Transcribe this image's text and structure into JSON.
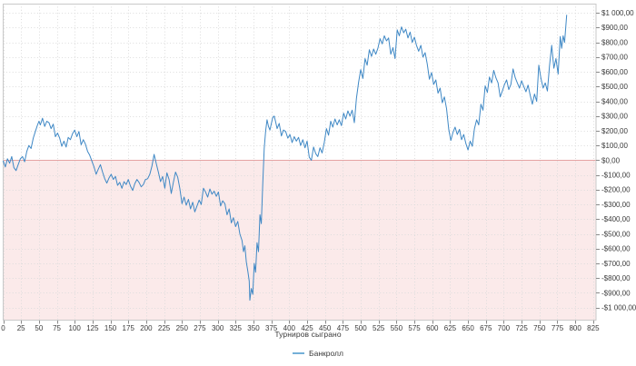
{
  "chart_data": {
    "type": "line",
    "title": "",
    "xlabel": "Турниров сыграно",
    "ylabel": "",
    "legend": [
      {
        "label": "Банкролл",
        "color": "#74b0d8"
      }
    ],
    "legend_position": "bottom",
    "grid": true,
    "xlim": [
      0,
      829
    ],
    "ylim": [
      -1088,
      1063
    ],
    "zero_line_value": 0,
    "x_ticks": [
      0,
      25,
      50,
      75,
      100,
      125,
      150,
      175,
      200,
      225,
      250,
      275,
      300,
      325,
      350,
      375,
      400,
      425,
      450,
      475,
      500,
      525,
      550,
      575,
      600,
      625,
      650,
      675,
      700,
      725,
      750,
      775,
      800,
      825
    ],
    "y_ticks": [
      {
        "value": 1000,
        "label": "$1 000,00"
      },
      {
        "value": 900,
        "label": "$900,00"
      },
      {
        "value": 800,
        "label": "$800,00"
      },
      {
        "value": 700,
        "label": "$700,00"
      },
      {
        "value": 600,
        "label": "$600,00"
      },
      {
        "value": 500,
        "label": "$500,00"
      },
      {
        "value": 400,
        "label": "$400,00"
      },
      {
        "value": 300,
        "label": "$300,00"
      },
      {
        "value": 200,
        "label": "$200,00"
      },
      {
        "value": 100,
        "label": "$100,00"
      },
      {
        "value": 0,
        "label": "$0,00"
      },
      {
        "value": -100,
        "label": "-$100,00"
      },
      {
        "value": -200,
        "label": "-$200,00"
      },
      {
        "value": -300,
        "label": "-$300,00"
      },
      {
        "value": -400,
        "label": "-$400,00"
      },
      {
        "value": -500,
        "label": "-$500,00"
      },
      {
        "value": -600,
        "label": "-$600,00"
      },
      {
        "value": -700,
        "label": "-$700,00"
      },
      {
        "value": -800,
        "label": "-$800,00"
      },
      {
        "value": -900,
        "label": "-$900,00"
      },
      {
        "value": -1000,
        "label": "-$1 000,00"
      }
    ],
    "colors": {
      "line": "#3f88c5",
      "negative_fill": "#fbeaea",
      "zero_line": "#e5a4a4",
      "grid": "#dcdcdc",
      "border": "#c9c9c9",
      "tick": "#8a8a8a",
      "tick_text": "#3a3a3a"
    },
    "series": [
      {
        "name": "Банкролл",
        "points": [
          [
            0,
            -5
          ],
          [
            3,
            -45
          ],
          [
            6,
            10
          ],
          [
            9,
            -20
          ],
          [
            12,
            25
          ],
          [
            15,
            -50
          ],
          [
            18,
            -70
          ],
          [
            21,
            -30
          ],
          [
            24,
            10
          ],
          [
            27,
            25
          ],
          [
            30,
            -10
          ],
          [
            33,
            60
          ],
          [
            36,
            100
          ],
          [
            39,
            80
          ],
          [
            42,
            150
          ],
          [
            45,
            195
          ],
          [
            48,
            240
          ],
          [
            50,
            265
          ],
          [
            52,
            240
          ],
          [
            55,
            285
          ],
          [
            58,
            230
          ],
          [
            61,
            265
          ],
          [
            64,
            255
          ],
          [
            67,
            215
          ],
          [
            70,
            245
          ],
          [
            73,
            160
          ],
          [
            76,
            185
          ],
          [
            79,
            150
          ],
          [
            82,
            95
          ],
          [
            85,
            130
          ],
          [
            88,
            90
          ],
          [
            91,
            155
          ],
          [
            94,
            140
          ],
          [
            97,
            180
          ],
          [
            100,
            205
          ],
          [
            103,
            160
          ],
          [
            106,
            195
          ],
          [
            109,
            105
          ],
          [
            112,
            140
          ],
          [
            115,
            110
          ],
          [
            118,
            60
          ],
          [
            121,
            35
          ],
          [
            124,
            -5
          ],
          [
            127,
            -45
          ],
          [
            130,
            -95
          ],
          [
            133,
            -60
          ],
          [
            136,
            -30
          ],
          [
            139,
            -80
          ],
          [
            142,
            -125
          ],
          [
            145,
            -155
          ],
          [
            148,
            -120
          ],
          [
            151,
            -95
          ],
          [
            154,
            -130
          ],
          [
            157,
            -110
          ],
          [
            160,
            -170
          ],
          [
            163,
            -150
          ],
          [
            166,
            -190
          ],
          [
            169,
            -145
          ],
          [
            172,
            -165
          ],
          [
            175,
            -130
          ],
          [
            178,
            -175
          ],
          [
            181,
            -205
          ],
          [
            184,
            -160
          ],
          [
            187,
            -130
          ],
          [
            190,
            -150
          ],
          [
            193,
            -180
          ],
          [
            196,
            -165
          ],
          [
            199,
            -130
          ],
          [
            202,
            -125
          ],
          [
            205,
            -95
          ],
          [
            208,
            -40
          ],
          [
            211,
            40
          ],
          [
            214,
            -20
          ],
          [
            217,
            -80
          ],
          [
            220,
            -145
          ],
          [
            223,
            -110
          ],
          [
            226,
            -190
          ],
          [
            229,
            -85
          ],
          [
            232,
            -130
          ],
          [
            235,
            -225
          ],
          [
            238,
            -150
          ],
          [
            241,
            -80
          ],
          [
            244,
            -115
          ],
          [
            247,
            -190
          ],
          [
            250,
            -295
          ],
          [
            253,
            -250
          ],
          [
            256,
            -305
          ],
          [
            259,
            -265
          ],
          [
            262,
            -330
          ],
          [
            265,
            -285
          ],
          [
            268,
            -350
          ],
          [
            271,
            -310
          ],
          [
            274,
            -270
          ],
          [
            277,
            -300
          ],
          [
            280,
            -190
          ],
          [
            283,
            -215
          ],
          [
            286,
            -250
          ],
          [
            289,
            -195
          ],
          [
            292,
            -230
          ],
          [
            295,
            -210
          ],
          [
            298,
            -245
          ],
          [
            301,
            -215
          ],
          [
            304,
            -310
          ],
          [
            307,
            -275
          ],
          [
            310,
            -295
          ],
          [
            313,
            -370
          ],
          [
            316,
            -330
          ],
          [
            319,
            -425
          ],
          [
            322,
            -390
          ],
          [
            325,
            -450
          ],
          [
            328,
            -415
          ],
          [
            331,
            -500
          ],
          [
            334,
            -545
          ],
          [
            336,
            -620
          ],
          [
            338,
            -580
          ],
          [
            340,
            -690
          ],
          [
            342,
            -750
          ],
          [
            344,
            -820
          ],
          [
            345,
            -950
          ],
          [
            347,
            -870
          ],
          [
            349,
            -910
          ],
          [
            351,
            -700
          ],
          [
            353,
            -760
          ],
          [
            355,
            -560
          ],
          [
            357,
            -620
          ],
          [
            359,
            -370
          ],
          [
            361,
            -430
          ],
          [
            363,
            -160
          ],
          [
            365,
            80
          ],
          [
            367,
            200
          ],
          [
            369,
            275
          ],
          [
            371,
            230
          ],
          [
            373,
            205
          ],
          [
            375,
            250
          ],
          [
            377,
            290
          ],
          [
            379,
            300
          ],
          [
            381,
            260
          ],
          [
            383,
            215
          ],
          [
            386,
            250
          ],
          [
            389,
            165
          ],
          [
            392,
            205
          ],
          [
            395,
            195
          ],
          [
            398,
            150
          ],
          [
            401,
            175
          ],
          [
            404,
            120
          ],
          [
            407,
            160
          ],
          [
            410,
            130
          ],
          [
            413,
            155
          ],
          [
            416,
            100
          ],
          [
            419,
            140
          ],
          [
            422,
            85
          ],
          [
            425,
            130
          ],
          [
            428,
            20
          ],
          [
            431,
            0
          ],
          [
            434,
            90
          ],
          [
            437,
            45
          ],
          [
            440,
            25
          ],
          [
            443,
            85
          ],
          [
            446,
            50
          ],
          [
            449,
            120
          ],
          [
            452,
            215
          ],
          [
            455,
            170
          ],
          [
            458,
            265
          ],
          [
            461,
            225
          ],
          [
            464,
            280
          ],
          [
            467,
            240
          ],
          [
            470,
            275
          ],
          [
            473,
            235
          ],
          [
            476,
            320
          ],
          [
            479,
            280
          ],
          [
            482,
            335
          ],
          [
            485,
            300
          ],
          [
            488,
            340
          ],
          [
            491,
            255
          ],
          [
            494,
            420
          ],
          [
            497,
            530
          ],
          [
            500,
            615
          ],
          [
            503,
            555
          ],
          [
            506,
            690
          ],
          [
            509,
            645
          ],
          [
            512,
            750
          ],
          [
            515,
            705
          ],
          [
            518,
            755
          ],
          [
            521,
            720
          ],
          [
            524,
            760
          ],
          [
            527,
            825
          ],
          [
            530,
            790
          ],
          [
            533,
            845
          ],
          [
            536,
            810
          ],
          [
            539,
            830
          ],
          [
            542,
            720
          ],
          [
            545,
            765
          ],
          [
            548,
            690
          ],
          [
            551,
            885
          ],
          [
            554,
            845
          ],
          [
            557,
            905
          ],
          [
            560,
            865
          ],
          [
            563,
            890
          ],
          [
            566,
            830
          ],
          [
            569,
            870
          ],
          [
            572,
            800
          ],
          [
            575,
            835
          ],
          [
            578,
            780
          ],
          [
            581,
            740
          ],
          [
            584,
            780
          ],
          [
            587,
            700
          ],
          [
            590,
            730
          ],
          [
            593,
            655
          ],
          [
            596,
            550
          ],
          [
            599,
            595
          ],
          [
            602,
            515
          ],
          [
            605,
            545
          ],
          [
            608,
            455
          ],
          [
            611,
            490
          ],
          [
            614,
            390
          ],
          [
            617,
            430
          ],
          [
            620,
            350
          ],
          [
            623,
            210
          ],
          [
            626,
            135
          ],
          [
            629,
            190
          ],
          [
            632,
            225
          ],
          [
            635,
            175
          ],
          [
            638,
            210
          ],
          [
            641,
            140
          ],
          [
            644,
            175
          ],
          [
            647,
            115
          ],
          [
            650,
            70
          ],
          [
            653,
            130
          ],
          [
            656,
            95
          ],
          [
            659,
            215
          ],
          [
            662,
            275
          ],
          [
            665,
            240
          ],
          [
            668,
            380
          ],
          [
            671,
            340
          ],
          [
            674,
            505
          ],
          [
            677,
            460
          ],
          [
            680,
            565
          ],
          [
            683,
            525
          ],
          [
            686,
            610
          ],
          [
            689,
            560
          ],
          [
            692,
            525
          ],
          [
            695,
            430
          ],
          [
            698,
            470
          ],
          [
            701,
            515
          ],
          [
            704,
            545
          ],
          [
            707,
            480
          ],
          [
            710,
            515
          ],
          [
            713,
            620
          ],
          [
            716,
            560
          ],
          [
            719,
            525
          ],
          [
            722,
            490
          ],
          [
            725,
            540
          ],
          [
            728,
            500
          ],
          [
            731,
            465
          ],
          [
            734,
            510
          ],
          [
            737,
            440
          ],
          [
            740,
            380
          ],
          [
            743,
            450
          ],
          [
            746,
            400
          ],
          [
            749,
            645
          ],
          [
            752,
            555
          ],
          [
            755,
            490
          ],
          [
            758,
            525
          ],
          [
            761,
            470
          ],
          [
            764,
            640
          ],
          [
            767,
            780
          ],
          [
            770,
            625
          ],
          [
            773,
            690
          ],
          [
            776,
            585
          ],
          [
            779,
            840
          ],
          [
            781,
            760
          ],
          [
            783,
            845
          ],
          [
            785,
            800
          ],
          [
            788,
            985
          ]
        ]
      }
    ]
  }
}
